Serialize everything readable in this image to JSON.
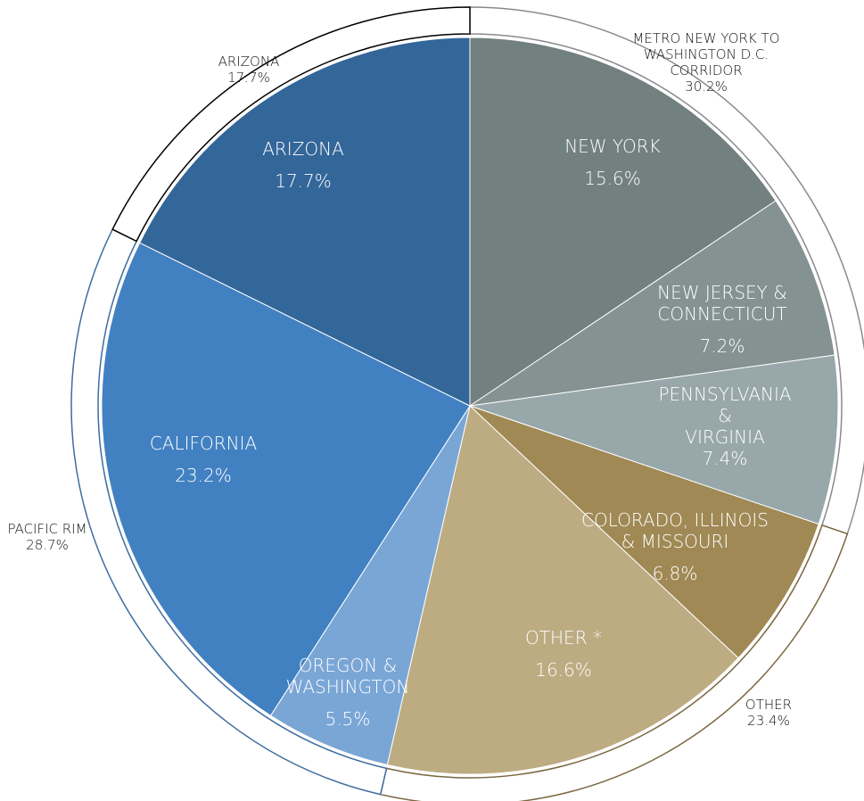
{
  "chart_data": {
    "type": "sunburst",
    "categories": [
      "NEW YORK",
      "NEW JERSEY &\nCONNECTICUT",
      "PENNSYLVANIA &\nVIRGINIA",
      "COLORADO, ILLINOIS\n& MISSOURI",
      "OTHER *",
      "OREGON &\nWASHINGTON",
      "CALIFORNIA",
      "ARIZONA"
    ],
    "values": [
      15.6,
      7.2,
      7.4,
      6.8,
      16.6,
      5.5,
      23.2,
      17.7
    ],
    "value_labels": [
      "15.6%",
      "7.2%",
      "7.4%",
      "6.8%",
      "16.6%",
      "5.5%",
      "23.2%",
      "17.7%"
    ],
    "colors": [
      "#72807f",
      "#849292",
      "#97a7aa",
      "#a08955",
      "#bdab82",
      "#7aa6d6",
      "#4281c1",
      "#336699"
    ],
    "groups": {
      "categories": [
        "METRO NEW YORK TO\nWASHINGTON D.C.\nCORRIDOR",
        "OTHER",
        "PACIFIC RIM",
        "ARIZONA"
      ],
      "values": [
        30.2,
        23.4,
        28.7,
        17.7
      ],
      "value_labels": [
        "30.2%",
        "23.4%",
        "28.7%",
        "17.7%"
      ],
      "colors": [
        "#8a8a8a",
        "#7a6640",
        "#3f6d9e",
        "#000000"
      ]
    }
  }
}
